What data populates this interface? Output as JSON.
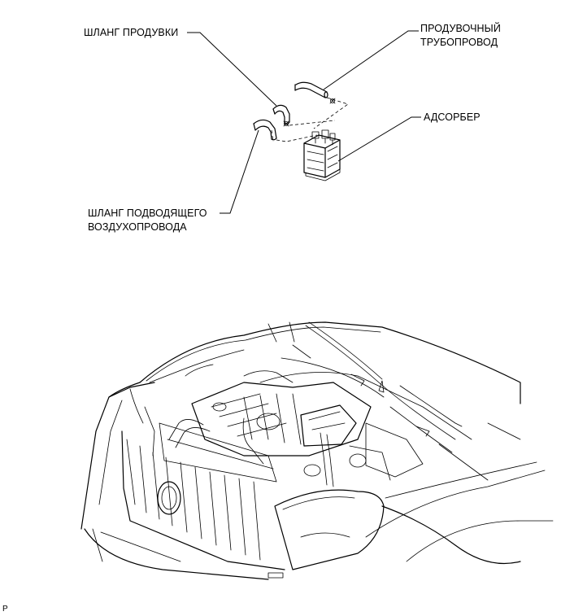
{
  "labels": {
    "purge_hose": "ШЛАНГ ПРОДУВКИ",
    "purge_pipe_line1": "ПРОДУВОЧНЫЙ",
    "purge_pipe_line2": "ТРУБОПРОВОД",
    "canister": "АДСОРБЕР",
    "air_inlet_hose_line1": "ШЛАНГ ПОДВОДЯЩЕГО",
    "air_inlet_hose_line2": "ВОЗДУХОПРОВОДА"
  },
  "figure_code": "P"
}
